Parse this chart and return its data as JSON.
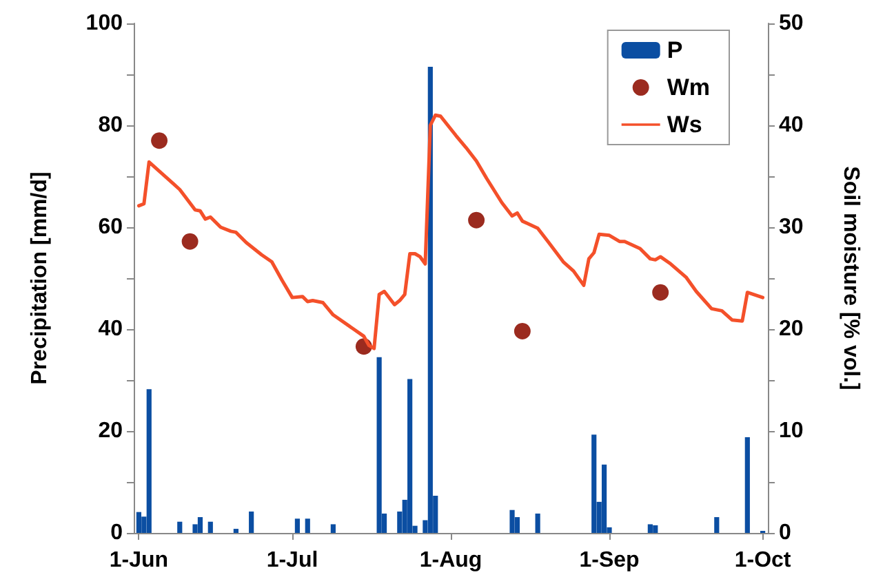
{
  "chart_data": {
    "type": "bar",
    "ylabel": "Precipitation [mm/d]",
    "y2label": "Soil moisture [% vol.]",
    "xlim": [
      "--05-31",
      "--10-02"
    ],
    "xticks": [
      {
        "value": "--06-01",
        "label": "1-Jun"
      },
      {
        "value": "--07-01",
        "label": "1-Jul"
      },
      {
        "value": "--08-01",
        "label": "1-Aug"
      },
      {
        "value": "--09-01",
        "label": "1-Sep"
      },
      {
        "value": "--10-01",
        "label": "1-Oct"
      }
    ],
    "ylim": [
      0,
      100
    ],
    "yticks": [
      0,
      {
        "value": 10,
        "label": null
      },
      20,
      {
        "value": 30,
        "label": null
      },
      40,
      {
        "value": 50,
        "label": null
      },
      60,
      {
        "value": 70,
        "label": null
      },
      80,
      {
        "value": 90,
        "label": null
      },
      100
    ],
    "y2lim": [
      0,
      50
    ],
    "y2ticks": [
      0,
      {
        "value": 5,
        "label": null
      },
      10,
      {
        "value": 15,
        "label": null
      },
      20,
      {
        "value": 25,
        "label": null
      },
      30,
      {
        "value": 35,
        "label": null
      },
      40,
      {
        "value": 45,
        "label": null
      },
      50
    ],
    "legend": "top right",
    "grid": false,
    "series": [
      {
        "name": "P",
        "color": "#0b4ea2",
        "x": [
          "--06-01",
          "--06-02",
          "--06-03",
          "--06-09",
          "--06-12",
          "--06-13",
          "--06-15",
          "--06-20",
          "--06-23",
          "--07-02",
          "--07-04",
          "--07-09",
          "--07-18",
          "--07-19",
          "--07-22",
          "--07-23",
          "--07-24",
          "--07-25",
          "--07-27",
          "--07-28",
          "--07-29",
          "--08-13",
          "--08-14",
          "--08-18",
          "--08-29",
          "--08-30",
          "--08-31",
          "--09-01",
          "--09-09",
          "--09-10",
          "--09-22",
          "--09-28",
          "--10-01"
        ],
        "values": [
          4.1,
          3.2,
          28.2,
          2.2,
          1.7,
          3.1,
          2.2,
          0.8,
          4.2,
          2.8,
          2.8,
          1.7,
          34.5,
          3.8,
          4.2,
          6.5,
          30.2,
          1.4,
          2.5,
          91.5,
          7.3,
          4.5,
          3.1,
          3.8,
          19.3,
          6.1,
          13.4,
          1.1,
          1.7,
          1.5,
          3.1,
          18.8,
          0.4
        ]
      },
      {
        "name": "Wm",
        "type": "scatter",
        "axis": "y2",
        "marker": "circle",
        "color": "#9b2b1f",
        "x": [
          "--06-05",
          "--06-11",
          "--07-15",
          "--08-06",
          "--08-15",
          "--09-11"
        ],
        "values": [
          38.5,
          28.6,
          18.3,
          30.7,
          19.8,
          23.6
        ]
      },
      {
        "name": "Ws",
        "type": "line",
        "axis": "y2",
        "marker": "none",
        "line_style": "solid",
        "color": "#f4502a",
        "x": [
          "--06-01",
          "--06-02",
          "--06-03",
          "--06-07",
          "--06-09",
          "--06-12",
          "--06-13",
          "--06-14",
          "--06-15",
          "--06-17",
          "--06-19",
          "--06-20",
          "--06-22",
          "--06-25",
          "--06-27",
          "--06-29",
          "--07-01",
          "--07-03",
          "--07-04",
          "--07-05",
          "--07-07",
          "--07-09",
          "--07-13",
          "--07-15",
          "--07-16",
          "--07-17",
          "--07-18",
          "--07-19",
          "--07-21",
          "--07-22",
          "--07-23",
          "--07-24",
          "--07-25",
          "--07-26",
          "--07-27",
          "--07-28",
          "--07-29",
          "--07-30",
          "--08-02",
          "--08-04",
          "--08-06",
          "--08-08",
          "--08-11",
          "--08-13",
          "--08-14",
          "--08-15",
          "--08-18",
          "--08-20",
          "--08-23",
          "--08-25",
          "--08-27",
          "--08-28",
          "--08-29",
          "--08-30",
          "--09-01",
          "--09-03",
          "--09-04",
          "--09-07",
          "--09-09",
          "--09-10",
          "--09-11",
          "--09-13",
          "--09-16",
          "--09-18",
          "--09-21",
          "--09-23",
          "--09-25",
          "--09-27",
          "--09-28",
          "--10-01"
        ],
        "values": [
          32.1,
          32.3,
          36.4,
          34.6,
          33.7,
          31.7,
          31.6,
          30.8,
          31.0,
          30.0,
          29.6,
          29.5,
          28.5,
          27.3,
          26.6,
          24.8,
          23.1,
          23.2,
          22.7,
          22.8,
          22.6,
          21.4,
          20.0,
          19.3,
          18.4,
          18.1,
          23.4,
          23.7,
          22.4,
          22.8,
          23.4,
          27.4,
          27.4,
          27.1,
          26.4,
          40.0,
          41.0,
          40.9,
          39.0,
          37.8,
          36.5,
          34.8,
          32.4,
          31.1,
          31.4,
          30.6,
          29.9,
          28.6,
          26.6,
          25.7,
          24.3,
          26.9,
          27.5,
          29.3,
          29.2,
          28.6,
          28.6,
          27.9,
          26.9,
          26.8,
          27.1,
          26.4,
          25.1,
          23.7,
          22.0,
          21.8,
          20.9,
          20.8,
          23.6,
          23.1
        ]
      }
    ]
  }
}
